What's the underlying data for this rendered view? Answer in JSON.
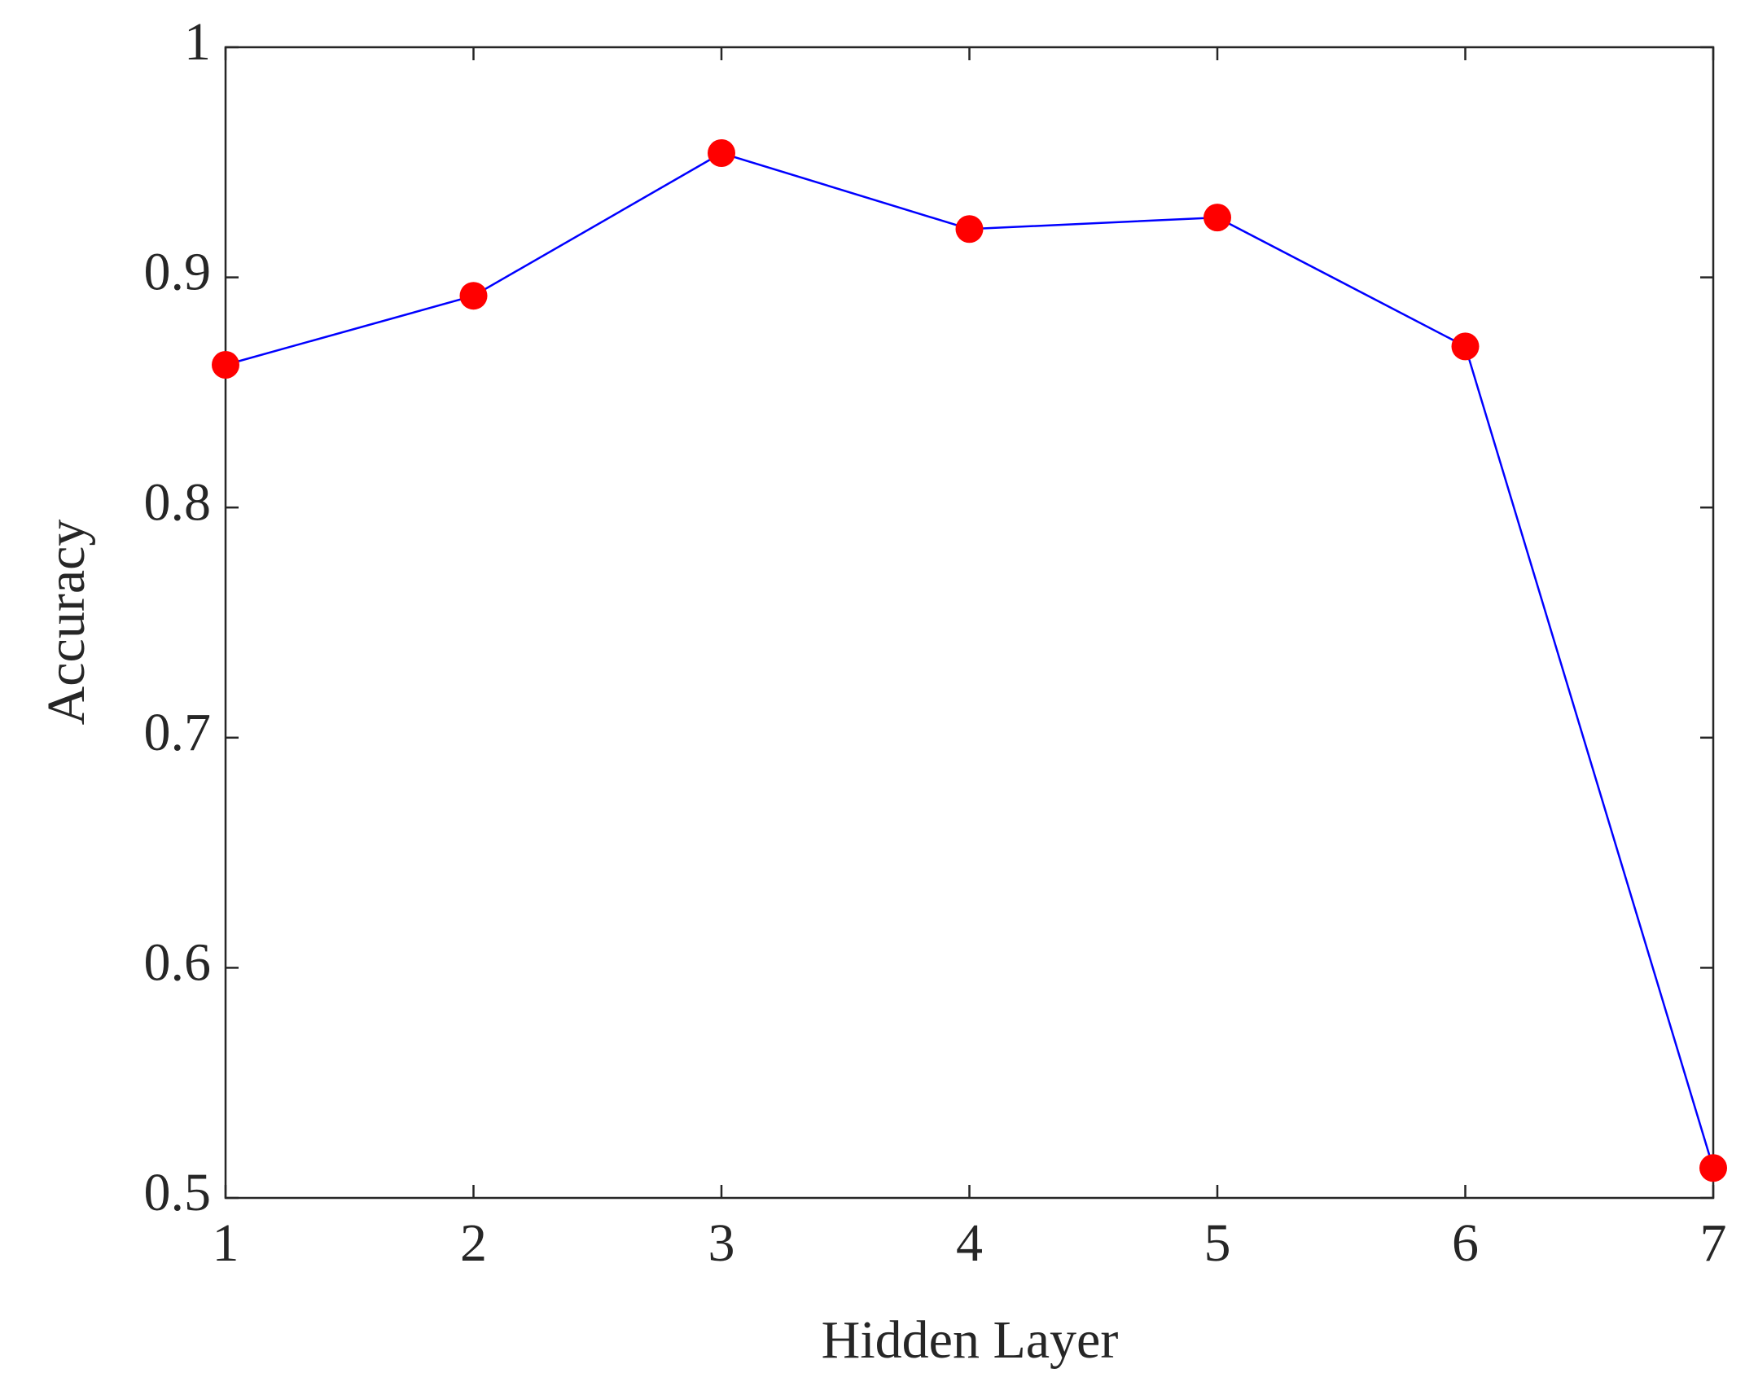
{
  "chart_data": {
    "type": "line",
    "xlabel": "Hidden Layer",
    "ylabel": "Accuracy",
    "x": [
      1,
      2,
      3,
      4,
      5,
      6,
      7
    ],
    "values": [
      0.862,
      0.892,
      0.954,
      0.921,
      0.926,
      0.87,
      0.513
    ],
    "line_color": "#0000ff",
    "marker_color": "#ff0000",
    "xlim": [
      1,
      7
    ],
    "xticks": [
      1,
      2,
      3,
      4,
      5,
      6,
      7
    ],
    "ylim": [
      0.5,
      1
    ],
    "yticks": [
      0.5,
      0.6,
      0.7,
      0.8,
      0.9,
      1
    ],
    "grid": false
  }
}
